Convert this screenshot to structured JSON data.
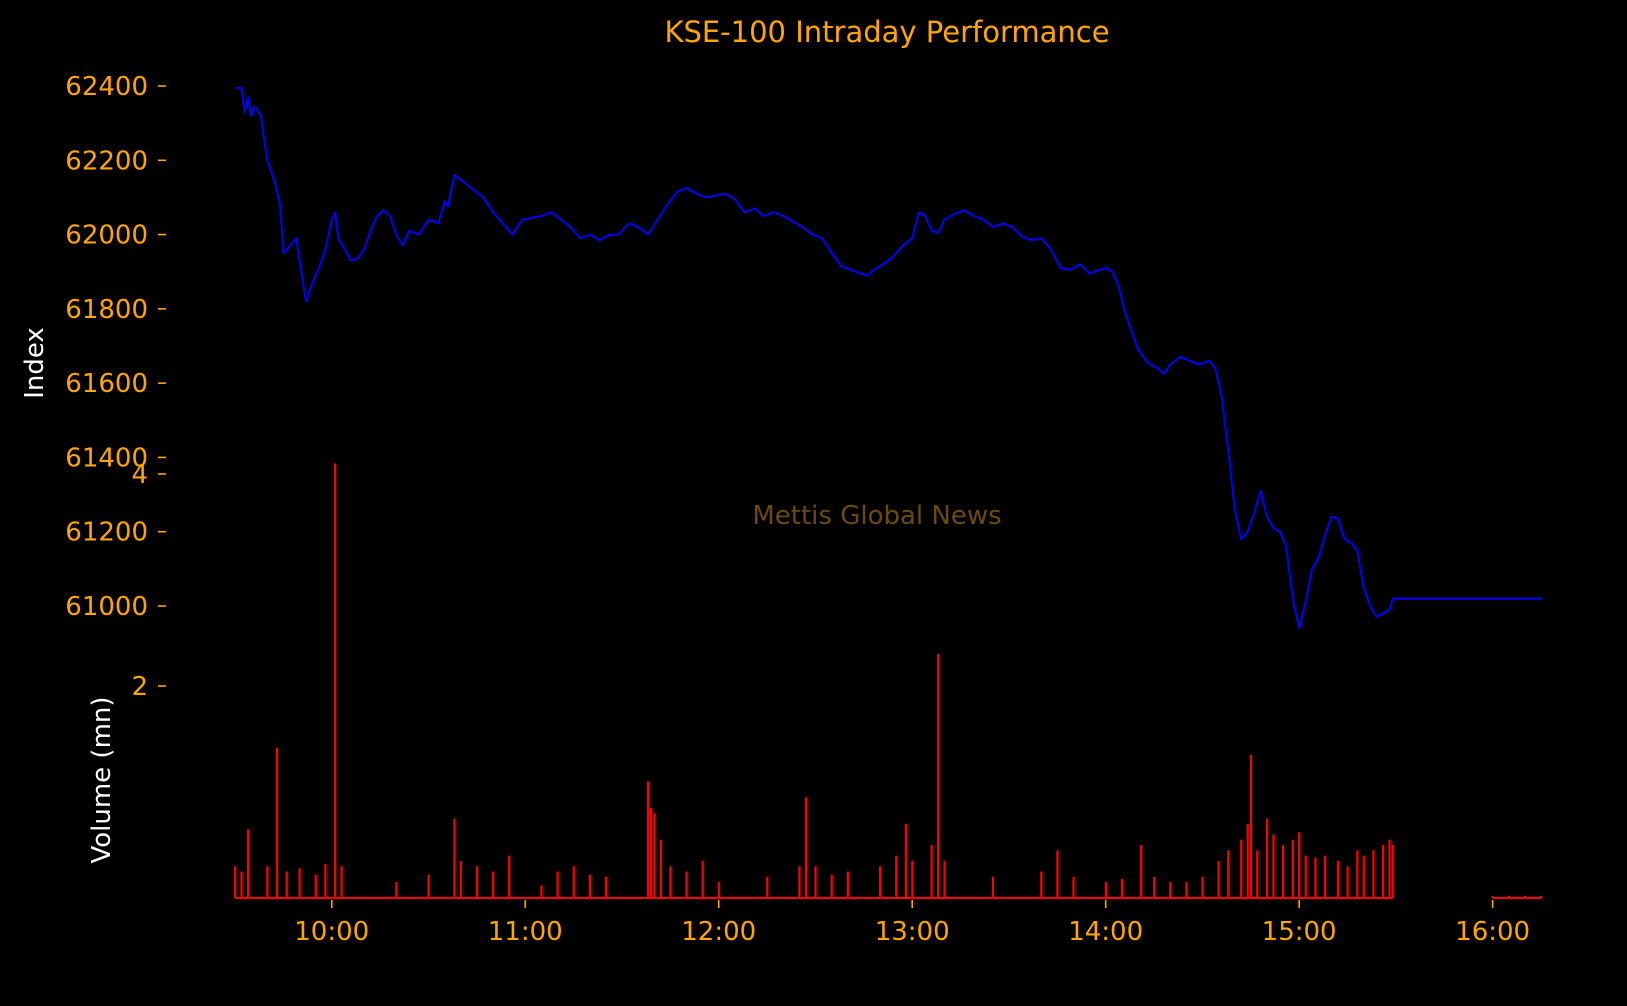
{
  "colors": {
    "background": "#000000",
    "accent": "#FFA500",
    "label": "#FFFFFF",
    "index_line": "#0000FF",
    "volume_bars": "#FF0000",
    "watermark": "#6B4A12"
  },
  "watermark": "Mettis Global News",
  "chart_data": [
    {
      "type": "line",
      "title": "KSE-100 Intraday Performance",
      "ylabel": "Index",
      "xlabel": "",
      "ylim": [
        60880,
        62430
      ],
      "yticks": [
        61000,
        61200,
        61400,
        61600,
        61800,
        62000,
        62200,
        62400
      ],
      "ytick_labels": [
        "61000",
        "61200",
        "61400",
        "61600",
        "61800",
        "62000",
        "62200",
        "62400"
      ],
      "grid": false,
      "series": [
        {
          "color": "#0000FF",
          "points": [
            [
              "09:30",
              62395
            ],
            [
              "09:32",
              62395
            ],
            [
              "09:33",
              62330
            ],
            [
              "09:34",
              62370
            ],
            [
              "09:35",
              62320
            ],
            [
              "09:36",
              62345
            ],
            [
              "09:38",
              62320
            ],
            [
              "09:40",
              62200
            ],
            [
              "09:42",
              62150
            ],
            [
              "09:44",
              62080
            ],
            [
              "09:45",
              61950
            ],
            [
              "09:47",
              61970
            ],
            [
              "09:49",
              61990
            ],
            [
              "09:50",
              61930
            ],
            [
              "09:52",
              61820
            ],
            [
              "09:54",
              61870
            ],
            [
              "09:56",
              61910
            ],
            [
              "09:58",
              61960
            ],
            [
              "10:00",
              62040
            ],
            [
              "10:01",
              62060
            ],
            [
              "10:02",
              61990
            ],
            [
              "10:04",
              61960
            ],
            [
              "10:06",
              61930
            ],
            [
              "10:08",
              61935
            ],
            [
              "10:10",
              61960
            ],
            [
              "10:12",
              62010
            ],
            [
              "10:14",
              62050
            ],
            [
              "10:16",
              62065
            ],
            [
              "10:18",
              62050
            ],
            [
              "10:20",
              62000
            ],
            [
              "10:22",
              61970
            ],
            [
              "10:24",
              62010
            ],
            [
              "10:27",
              62000
            ],
            [
              "10:30",
              62040
            ],
            [
              "10:33",
              62030
            ],
            [
              "10:35",
              62090
            ],
            [
              "10:36",
              62075
            ],
            [
              "10:38",
              62160
            ],
            [
              "10:41",
              62140
            ],
            [
              "10:44",
              62120
            ],
            [
              "10:47",
              62100
            ],
            [
              "10:50",
              62060
            ],
            [
              "10:53",
              62030
            ],
            [
              "10:56",
              62000
            ],
            [
              "10:59",
              62040
            ],
            [
              "11:02",
              62045
            ],
            [
              "11:05",
              62050
            ],
            [
              "11:08",
              62060
            ],
            [
              "11:11",
              62040
            ],
            [
              "11:14",
              62020
            ],
            [
              "11:17",
              61990
            ],
            [
              "11:20",
              62000
            ],
            [
              "11:23",
              61985
            ],
            [
              "11:26",
              62000
            ],
            [
              "11:29",
              62000
            ],
            [
              "11:32",
              62030
            ],
            [
              "11:35",
              62020
            ],
            [
              "11:38",
              62000
            ],
            [
              "11:41",
              62040
            ],
            [
              "11:44",
              62080
            ],
            [
              "11:47",
              62115
            ],
            [
              "11:50",
              62125
            ],
            [
              "11:53",
              62110
            ],
            [
              "11:56",
              62100
            ],
            [
              "11:59",
              62105
            ],
            [
              "12:02",
              62110
            ],
            [
              "12:05",
              62095
            ],
            [
              "12:08",
              62060
            ],
            [
              "12:11",
              62070
            ],
            [
              "12:14",
              62050
            ],
            [
              "12:17",
              62060
            ],
            [
              "12:20",
              62050
            ],
            [
              "12:23",
              62035
            ],
            [
              "12:26",
              62020
            ],
            [
              "12:29",
              62000
            ],
            [
              "12:32",
              61990
            ],
            [
              "12:35",
              61950
            ],
            [
              "12:38",
              61915
            ],
            [
              "12:41",
              61905
            ],
            [
              "12:44",
              61895
            ],
            [
              "12:46",
              61890
            ],
            [
              "12:48",
              61905
            ],
            [
              "12:51",
              61920
            ],
            [
              "12:54",
              61940
            ],
            [
              "12:57",
              61970
            ],
            [
              "13:00",
              61990
            ],
            [
              "13:02",
              62060
            ],
            [
              "13:04",
              62050
            ],
            [
              "13:06",
              62010
            ],
            [
              "13:08",
              62005
            ],
            [
              "13:10",
              62040
            ],
            [
              "13:13",
              62055
            ],
            [
              "13:16",
              62065
            ],
            [
              "13:19",
              62050
            ],
            [
              "13:22",
              62040
            ],
            [
              "13:25",
              62020
            ],
            [
              "13:28",
              62030
            ],
            [
              "13:31",
              62020
            ],
            [
              "13:34",
              61995
            ],
            [
              "13:37",
              61985
            ],
            [
              "13:40",
              61990
            ],
            [
              "13:43",
              61960
            ],
            [
              "13:46",
              61910
            ],
            [
              "13:49",
              61905
            ],
            [
              "13:52",
              61920
            ],
            [
              "13:55",
              61895
            ],
            [
              "13:58",
              61905
            ],
            [
              "14:00",
              61910
            ],
            [
              "14:02",
              61900
            ],
            [
              "14:04",
              61860
            ],
            [
              "14:06",
              61790
            ],
            [
              "14:08",
              61740
            ],
            [
              "14:10",
              61690
            ],
            [
              "14:13",
              61655
            ],
            [
              "14:16",
              61640
            ],
            [
              "14:18",
              61625
            ],
            [
              "14:20",
              61650
            ],
            [
              "14:23",
              61670
            ],
            [
              "14:26",
              61660
            ],
            [
              "14:29",
              61650
            ],
            [
              "14:32",
              61660
            ],
            [
              "14:34",
              61640
            ],
            [
              "14:36",
              61560
            ],
            [
              "14:38",
              61420
            ],
            [
              "14:40",
              61260
            ],
            [
              "14:42",
              61180
            ],
            [
              "14:44",
              61200
            ],
            [
              "14:46",
              61250
            ],
            [
              "14:48",
              61310
            ],
            [
              "14:50",
              61240
            ],
            [
              "14:52",
              61210
            ],
            [
              "14:54",
              61200
            ],
            [
              "14:56",
              61160
            ],
            [
              "14:58",
              61020
            ],
            [
              "15:00",
              60940
            ],
            [
              "15:02",
              61010
            ],
            [
              "15:04",
              61100
            ],
            [
              "15:06",
              61130
            ],
            [
              "15:08",
              61190
            ],
            [
              "15:10",
              61240
            ],
            [
              "15:12",
              61235
            ],
            [
              "15:14",
              61180
            ],
            [
              "15:16",
              61170
            ],
            [
              "15:18",
              61150
            ],
            [
              "15:20",
              61050
            ],
            [
              "15:22",
              61000
            ],
            [
              "15:24",
              60970
            ],
            [
              "15:26",
              60980
            ],
            [
              "15:28",
              60990
            ],
            [
              "15:29",
              61020
            ],
            [
              "16:15",
              61020
            ]
          ]
        }
      ]
    },
    {
      "type": "bar",
      "ylabel": "Volume (mn)",
      "xlabel": "",
      "ylim": [
        0,
        4.2
      ],
      "yticks": [
        2,
        4
      ],
      "ytick_labels": [
        "2",
        "4"
      ],
      "xticks": [
        "10:00",
        "11:00",
        "12:00",
        "13:00",
        "14:00",
        "15:00",
        "16:00"
      ],
      "xtick_labels": [
        "10:00",
        "11:00",
        "12:00",
        "13:00",
        "14:00",
        "15:00",
        "16:00"
      ],
      "x_range": [
        "09:30",
        "16:15"
      ],
      "grid": false,
      "bars": [
        [
          "09:30",
          0.3
        ],
        [
          "09:32",
          0.25
        ],
        [
          "09:34",
          0.65
        ],
        [
          "09:40",
          0.3
        ],
        [
          "09:43",
          1.42
        ],
        [
          "09:46",
          0.25
        ],
        [
          "09:50",
          0.28
        ],
        [
          "09:55",
          0.22
        ],
        [
          "09:58",
          0.32
        ],
        [
          "10:01",
          4.1
        ],
        [
          "10:03",
          0.3
        ],
        [
          "10:20",
          0.15
        ],
        [
          "10:30",
          0.22
        ],
        [
          "10:38",
          0.75
        ],
        [
          "10:40",
          0.35
        ],
        [
          "10:45",
          0.3
        ],
        [
          "10:50",
          0.25
        ],
        [
          "10:55",
          0.4
        ],
        [
          "11:05",
          0.12
        ],
        [
          "11:10",
          0.25
        ],
        [
          "11:15",
          0.3
        ],
        [
          "11:20",
          0.22
        ],
        [
          "11:25",
          0.2
        ],
        [
          "11:38",
          1.1
        ],
        [
          "11:39",
          0.85
        ],
        [
          "11:40",
          0.8
        ],
        [
          "11:42",
          0.55
        ],
        [
          "11:45",
          0.3
        ],
        [
          "11:50",
          0.25
        ],
        [
          "11:55",
          0.35
        ],
        [
          "12:00",
          0.15
        ],
        [
          "12:15",
          0.2
        ],
        [
          "12:25",
          0.3
        ],
        [
          "12:27",
          0.95
        ],
        [
          "12:30",
          0.3
        ],
        [
          "12:35",
          0.22
        ],
        [
          "12:40",
          0.25
        ],
        [
          "12:50",
          0.3
        ],
        [
          "12:55",
          0.4
        ],
        [
          "12:58",
          0.7
        ],
        [
          "13:00",
          0.35
        ],
        [
          "13:06",
          0.5
        ],
        [
          "13:08",
          2.3
        ],
        [
          "13:10",
          0.35
        ],
        [
          "13:25",
          0.2
        ],
        [
          "13:40",
          0.25
        ],
        [
          "13:45",
          0.45
        ],
        [
          "13:50",
          0.2
        ],
        [
          "14:00",
          0.15
        ],
        [
          "14:05",
          0.18
        ],
        [
          "14:11",
          0.5
        ],
        [
          "14:15",
          0.2
        ],
        [
          "14:20",
          0.15
        ],
        [
          "14:25",
          0.15
        ],
        [
          "14:30",
          0.2
        ],
        [
          "14:35",
          0.35
        ],
        [
          "14:38",
          0.45
        ],
        [
          "14:42",
          0.55
        ],
        [
          "14:44",
          0.7
        ],
        [
          "14:45",
          1.35
        ],
        [
          "14:47",
          0.45
        ],
        [
          "14:50",
          0.75
        ],
        [
          "14:52",
          0.6
        ],
        [
          "14:55",
          0.5
        ],
        [
          "14:58",
          0.55
        ],
        [
          "15:00",
          0.62
        ],
        [
          "15:02",
          0.4
        ],
        [
          "15:05",
          0.38
        ],
        [
          "15:08",
          0.4
        ],
        [
          "15:12",
          0.35
        ],
        [
          "15:15",
          0.3
        ],
        [
          "15:18",
          0.45
        ],
        [
          "15:20",
          0.4
        ],
        [
          "15:23",
          0.45
        ],
        [
          "15:26",
          0.5
        ],
        [
          "15:28",
          0.55
        ],
        [
          "15:29",
          0.5
        ],
        [
          "16:00",
          0.02
        ],
        [
          "16:05",
          0.02
        ],
        [
          "16:10",
          0.02
        ],
        [
          "16:15",
          0.02
        ]
      ]
    }
  ]
}
